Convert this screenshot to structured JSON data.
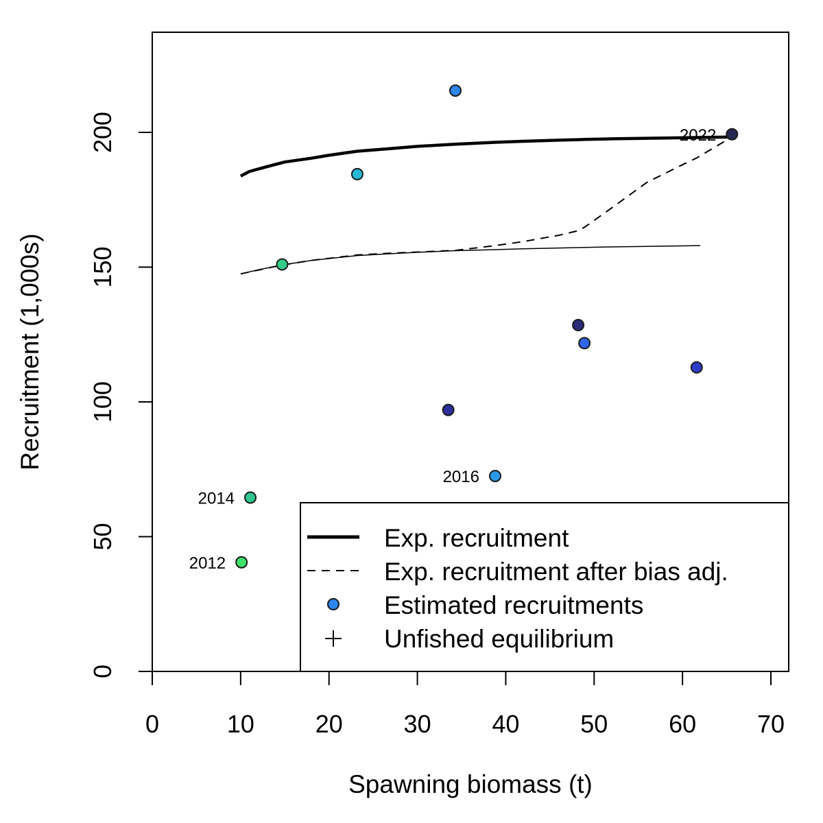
{
  "chart_data": {
    "type": "scatter",
    "title": "",
    "xlabel": "Spawning biomass (t)",
    "ylabel": "Recruitment (1,000s)",
    "xlim": [
      0,
      72
    ],
    "ylim": [
      0,
      235
    ],
    "x_ticks": [
      0,
      10,
      20,
      30,
      40,
      50,
      60,
      70
    ],
    "y_ticks": [
      0,
      50,
      100,
      150,
      200
    ],
    "series": [
      {
        "name": "Exp. recruitment",
        "kind": "line",
        "style": "solid-thick",
        "x": [
          10.0,
          11.0,
          13.0,
          15.0,
          18.0,
          20.0,
          23.2,
          27.0,
          30.0,
          34.3,
          38.8,
          42.0,
          46.0,
          48.2,
          49.0,
          52.0,
          56.0,
          60.0,
          61.6,
          65.6
        ],
        "y": [
          183.8,
          185.5,
          187.3,
          189.0,
          190.4,
          191.5,
          193.0,
          194.0,
          194.8,
          195.6,
          196.3,
          196.7,
          197.1,
          197.3,
          197.4,
          197.6,
          197.8,
          198.0,
          198.1,
          198.3
        ]
      },
      {
        "name": "Exp. recruitment after bias adj.",
        "kind": "line",
        "style": "dashed",
        "x": [
          10.0,
          14.7,
          18.0,
          23.2,
          27.0,
          30.0,
          34.3,
          38.8,
          42.0,
          46.0,
          48.2,
          49.0,
          52.0,
          56.0,
          60.0,
          61.6,
          65.6
        ],
        "y": [
          147.5,
          150.8,
          152.5,
          154.5,
          155.2,
          155.6,
          156.2,
          158.0,
          159.5,
          161.8,
          163.5,
          165.0,
          172.0,
          181.5,
          188.0,
          190.5,
          198.3
        ]
      },
      {
        "name": "Unfished equilibrium curve",
        "kind": "line",
        "style": "thin",
        "x": [
          10.0,
          12.0,
          14.7,
          18.0,
          23.2,
          27.0,
          30.0,
          34.3,
          38.8,
          42.0,
          46.0,
          49.0,
          52.0,
          56.0,
          60.0,
          62.0
        ],
        "y": [
          147.5,
          149.0,
          150.8,
          152.5,
          154.3,
          155.0,
          155.5,
          156.1,
          156.5,
          156.8,
          157.1,
          157.3,
          157.5,
          157.7,
          157.9,
          158.0
        ]
      }
    ],
    "points": [
      {
        "x": 10.1,
        "y": 40.5,
        "label": "2012",
        "color": "#3fe06a"
      },
      {
        "x": 14.7,
        "y": 151.0,
        "label": "",
        "color": "#33cc88"
      },
      {
        "x": 11.1,
        "y": 64.5,
        "label": "2014",
        "color": "#2fc690"
      },
      {
        "x": 23.2,
        "y": 184.5,
        "label": "",
        "color": "#26b8d4"
      },
      {
        "x": 38.8,
        "y": 72.5,
        "label": "2016",
        "color": "#2a9ae8"
      },
      {
        "x": 34.3,
        "y": 215.5,
        "label": "",
        "color": "#2c86ec"
      },
      {
        "x": 48.9,
        "y": 121.8,
        "label": "",
        "color": "#2f66e8"
      },
      {
        "x": 61.6,
        "y": 112.8,
        "label": "",
        "color": "#2d3fc8"
      },
      {
        "x": 33.5,
        "y": 97.0,
        "label": "",
        "color": "#2d2f9a"
      },
      {
        "x": 48.2,
        "y": 128.5,
        "label": "",
        "color": "#2c2c7c"
      },
      {
        "x": 65.6,
        "y": 199.3,
        "label": "2022",
        "color": "#262652"
      }
    ],
    "legend": {
      "position": "bottom-right",
      "items": [
        {
          "label": "Exp. recruitment",
          "symbol": "thick-line"
        },
        {
          "label": "Exp. recruitment after bias adj.",
          "symbol": "dashed-line"
        },
        {
          "label": "Estimated recruitments",
          "symbol": "point",
          "color": "#2c86ec"
        },
        {
          "label": "Unfished equilibrium",
          "symbol": "plus"
        }
      ]
    }
  }
}
